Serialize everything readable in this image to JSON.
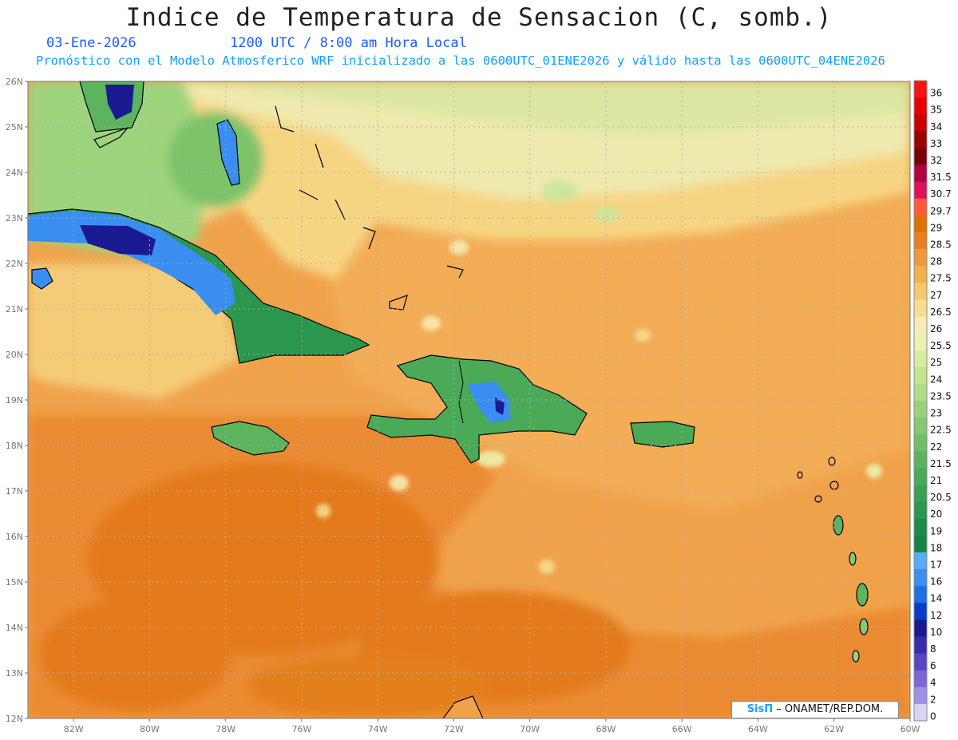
{
  "title": "Indice de Temperatura de Sensacion (C, somb.)",
  "date_label": "03-Ene-2026",
  "time_label": "1200 UTC / 8:00 am Hora Local",
  "description": "Pronóstico con el Modelo Atmosferico WRF inicializado a las 0600UTC_01ENE2026 y válido hasta las  0600UTC_04ENE2026",
  "credit": {
    "brand": "SisΠ",
    "text": "– ONAMET/REP.DOM."
  },
  "map": {
    "lon_range": [
      -83.2,
      -60
    ],
    "lat_range": [
      12,
      26
    ],
    "lon_ticks": [
      "82W",
      "80W",
      "78W",
      "76W",
      "74W",
      "72W",
      "70W",
      "68W",
      "66W",
      "64W",
      "62W",
      "60W"
    ],
    "lat_ticks": [
      "26N",
      "25N",
      "24N",
      "23N",
      "22N",
      "21N",
      "20N",
      "19N",
      "18N",
      "17N",
      "16N",
      "15N",
      "14N",
      "13N",
      "12N"
    ],
    "grid": true
  },
  "legend": {
    "labels": [
      "36",
      "35",
      "34",
      "33",
      "32",
      "31.5",
      "30.7",
      "29.7",
      "29",
      "28.5",
      "28",
      "27.5",
      "27",
      "26.5",
      "26",
      "25.5",
      "25",
      "24",
      "23.5",
      "23",
      "22.5",
      "22",
      "21.5",
      "21",
      "20.5",
      "20",
      "19",
      "18",
      "17",
      "16",
      "14",
      "12",
      "10",
      "8",
      "6",
      "4",
      "2",
      "0"
    ],
    "colors": [
      "#ff1010",
      "#e80000",
      "#c80000",
      "#9c0000",
      "#7a0008",
      "#b00040",
      "#e01060",
      "#ff5a3c",
      "#e07000",
      "#e88020",
      "#ee9a3c",
      "#f3b04e",
      "#f6c86c",
      "#f8dc90",
      "#f6ecb6",
      "#eef0b0",
      "#d8eca0",
      "#c4e490",
      "#b0dc86",
      "#9ad27c",
      "#86c870",
      "#70be66",
      "#5cb45e",
      "#4aaa58",
      "#3aa052",
      "#2a964e",
      "#1e8c48",
      "#148444",
      "#5aaaf4",
      "#3a8ef0",
      "#1e6ee4",
      "#0a3ccc",
      "#1a1a90",
      "#3a2aac",
      "#5a44c0",
      "#7c66d8",
      "#a090e8",
      "#d8d4f8"
    ]
  }
}
